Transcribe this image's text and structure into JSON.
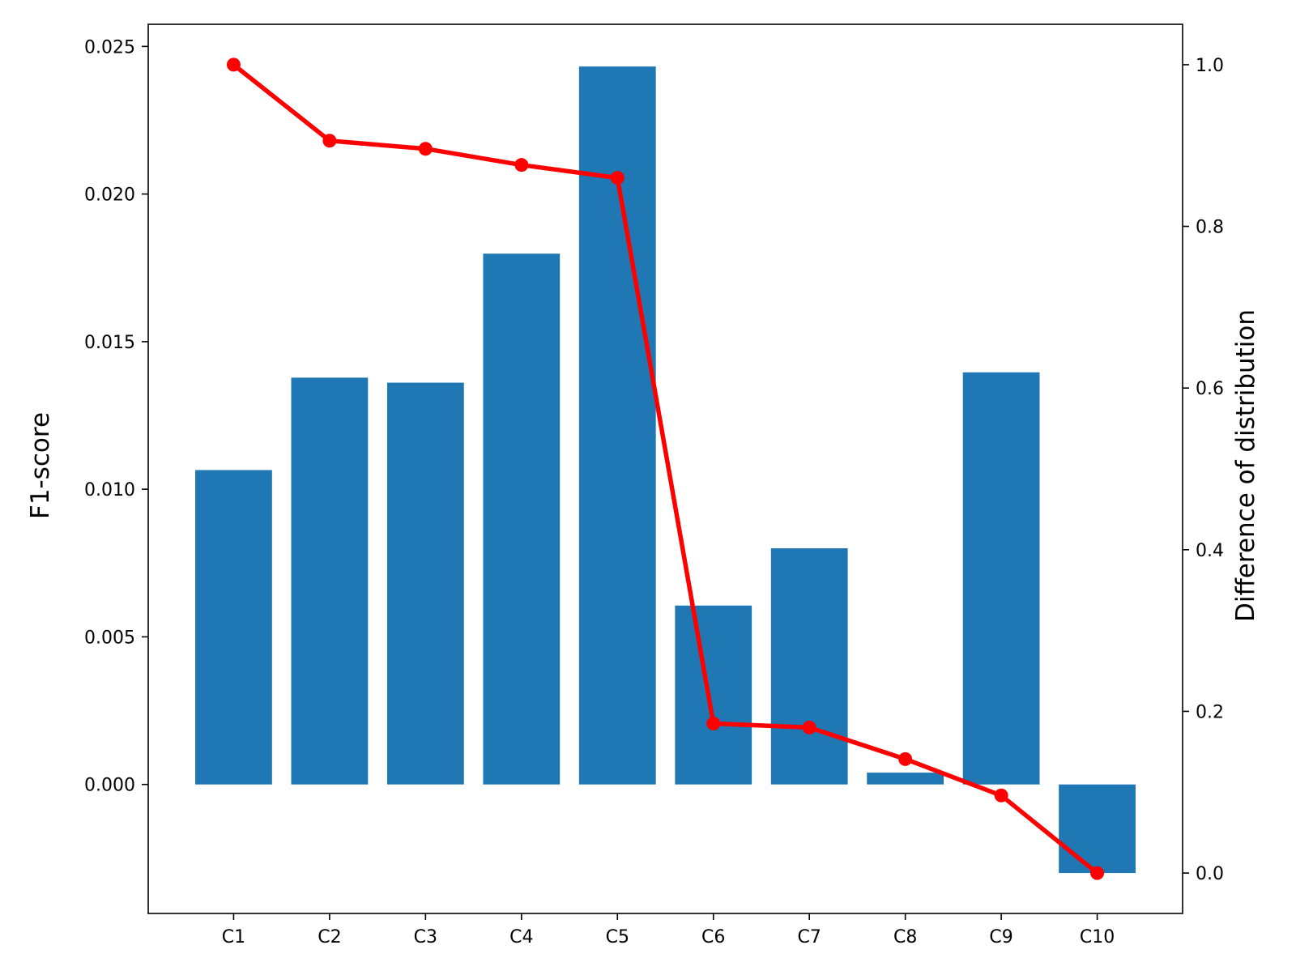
{
  "chart_data": {
    "type": "bar",
    "categories": [
      "C1",
      "C2",
      "C3",
      "C4",
      "C5",
      "C6",
      "C7",
      "C8",
      "C9",
      "C10"
    ],
    "bar_series": {
      "values": [
        0.01065,
        0.01378,
        0.01361,
        0.01798,
        0.02432,
        0.00606,
        0.008,
        0.0004,
        0.01396,
        -0.003
      ],
      "axis": "left"
    },
    "line_series": {
      "values": [
        1.0,
        0.906,
        0.896,
        0.876,
        0.86,
        0.185,
        0.18,
        0.141,
        0.096,
        0.0
      ],
      "axis": "right",
      "markers": true
    },
    "ylabel": "F1-score",
    "y2label": "Difference of distribution",
    "xlabel": "",
    "title": "",
    "ylim": [
      -0.00437,
      0.02575
    ],
    "y2lim": [
      -0.05,
      1.05
    ],
    "yticks": [
      "0.000",
      "0.005",
      "0.010",
      "0.015",
      "0.020",
      "0.025"
    ],
    "ytick_values": [
      0.0,
      0.005,
      0.01,
      0.015,
      0.02,
      0.025
    ],
    "y2ticks": [
      "0.0",
      "0.2",
      "0.4",
      "0.6",
      "0.8",
      "1.0"
    ],
    "y2tick_values": [
      0.0,
      0.2,
      0.4,
      0.6,
      0.8,
      1.0
    ],
    "grid": false,
    "legend": "none",
    "colors": {
      "bar": "#1f77b4",
      "line": "#ff0000",
      "axes": "#000000"
    }
  }
}
